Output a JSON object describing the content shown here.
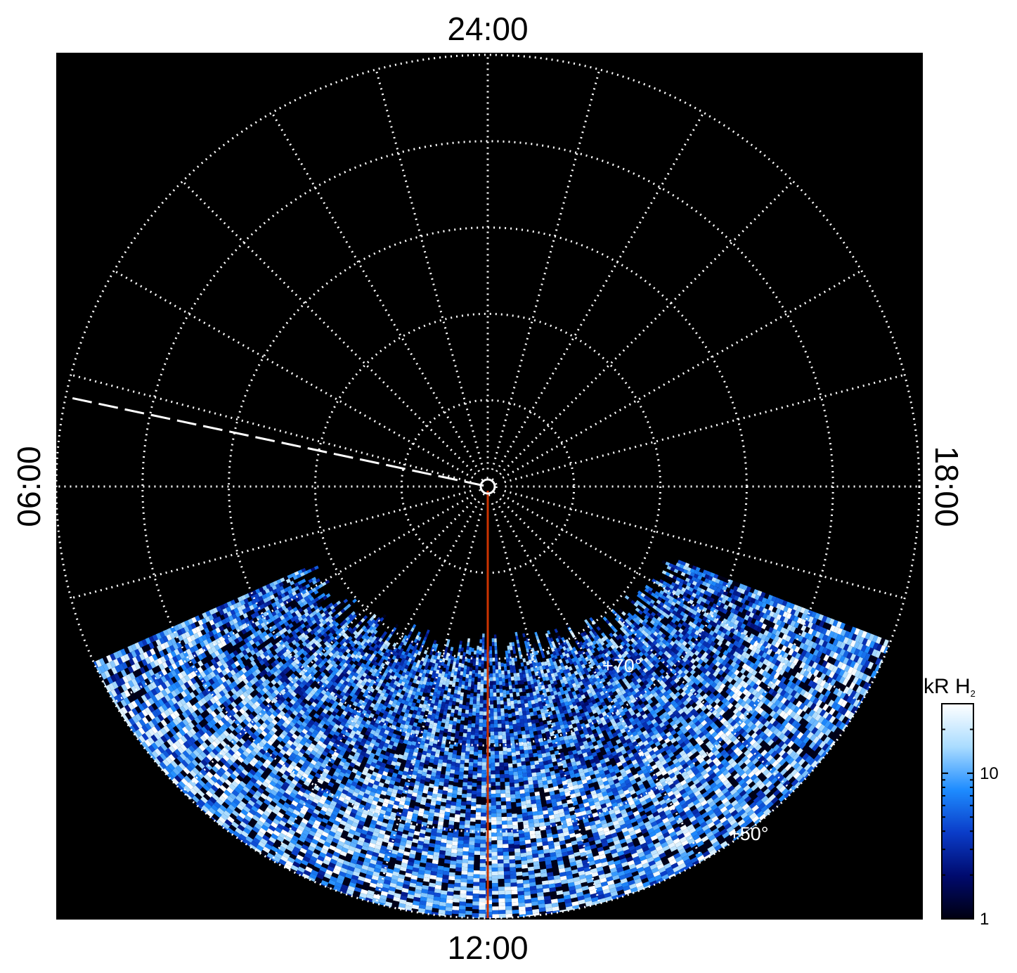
{
  "chart_data": {
    "type": "heatmap",
    "projection": "polar (north pole view, local time vs latitude)",
    "local_time_labels": {
      "top": "24:00",
      "bottom": "12:00",
      "left": "06:00",
      "right": "18:00"
    },
    "latitude_labels": [
      "+70°",
      "+50°"
    ],
    "latitude_grid_deg": [
      89,
      80,
      70,
      60,
      50,
      40
    ],
    "local_time_grid_hours": [
      0,
      1,
      2,
      3,
      4,
      5,
      6,
      7,
      8,
      9,
      10,
      11,
      12,
      13,
      14,
      15,
      16,
      17,
      18,
      19,
      20,
      21,
      22,
      23
    ],
    "grid": "dotted white",
    "observation_coverage": "latitudes south of ~70° in the dayside (approx. 08:00–16:00 local time)",
    "intensity_units": "kR H₂",
    "colorbar": {
      "title": "kR H",
      "title_subscript": "2",
      "scale": "log",
      "range": [
        1,
        30
      ],
      "tick_labels": [
        "1",
        "10"
      ],
      "tick_values": [
        1,
        10
      ],
      "colormap": [
        "#000010",
        "#000a6e",
        "#0a3cc8",
        "#1e8cff",
        "#aadcff",
        "#ffffff"
      ],
      "placement": "right"
    },
    "overlays": [
      {
        "name": "noon meridian",
        "local_time": "12:00",
        "style": "solid",
        "color": "#cc3300"
      },
      {
        "name": "dashed meridian",
        "local_time_hours": 5.2,
        "style": "dashed",
        "color": "#ffffff"
      }
    ]
  }
}
